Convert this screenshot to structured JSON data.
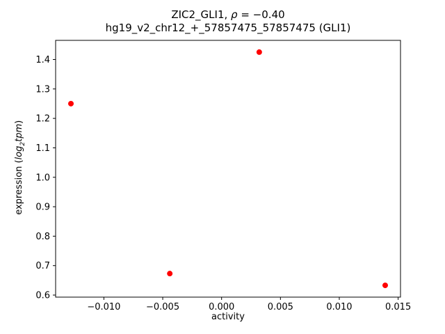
{
  "title": {
    "line1_prefix": "ZIC2_GLI1, ",
    "line1_rho": "ρ",
    "line1_suffix": " = −0.40",
    "line2": "hg19_v2_chr12_+_57857475_57857475 (GLI1)"
  },
  "axes": {
    "xlabel": "activity",
    "ylabel_prefix": "expression (",
    "ylabel_log": "log",
    "ylabel_sub": "2",
    "ylabel_tpm": "tpm",
    "ylabel_close": ")"
  },
  "chart_data": {
    "type": "scatter",
    "title": "ZIC2_GLI1, ρ = −0.40",
    "subtitle": "hg19_v2_chr12_+_57857475_57857475 (GLI1)",
    "xlabel": "activity",
    "ylabel": "expression (log2tpm)",
    "points": [
      {
        "x": -0.0128,
        "y": 1.25
      },
      {
        "x": -0.0044,
        "y": 0.673
      },
      {
        "x": 0.0032,
        "y": 1.425
      },
      {
        "x": 0.0139,
        "y": 0.633
      }
    ],
    "marker_color": "#ff0000",
    "marker_radius": 4,
    "xlim": [
      -0.0141,
      0.0152
    ],
    "ylim": [
      0.593,
      1.465
    ],
    "xticks": [
      -0.01,
      -0.005,
      0.0,
      0.005,
      0.01,
      0.015
    ],
    "yticks": [
      0.6,
      0.7,
      0.8,
      0.9,
      1.0,
      1.1,
      1.2,
      1.3,
      1.4
    ],
    "grid": false,
    "legend": null
  }
}
